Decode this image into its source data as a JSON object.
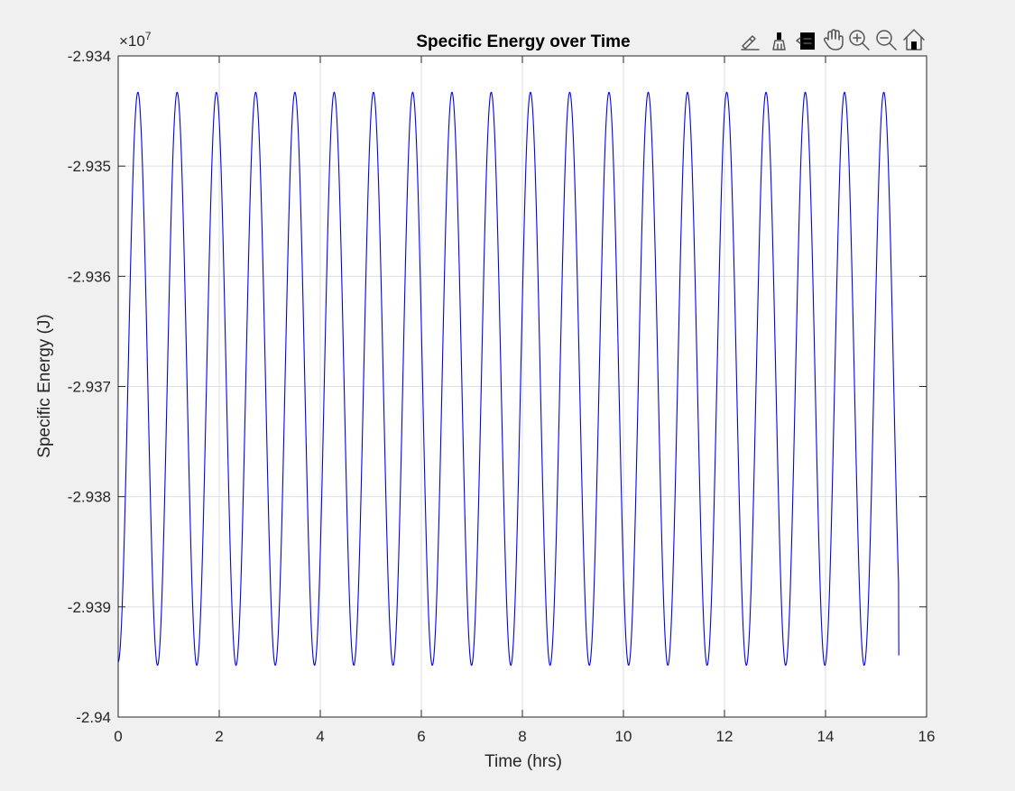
{
  "chart_data": {
    "type": "line",
    "title": "Specific Energy over Time",
    "xlabel": "Time (hrs)",
    "ylabel": "Specific Energy (J)",
    "y_exponent_label": "×10",
    "y_exponent_power": "7",
    "xlim": [
      0,
      16
    ],
    "ylim": [
      -2.94,
      -2.934
    ],
    "y_scale_factor": 10000000,
    "x_ticks": [
      0,
      2,
      4,
      6,
      8,
      10,
      12,
      14,
      16
    ],
    "x_tick_labels": [
      "0",
      "2",
      "4",
      "6",
      "8",
      "10",
      "12",
      "14",
      "16"
    ],
    "y_ticks": [
      -2.94,
      -2.939,
      -2.938,
      -2.937,
      -2.936,
      -2.935,
      -2.934
    ],
    "y_tick_labels": [
      "-2.94",
      "-2.939",
      "-2.938",
      "-2.937",
      "-2.936",
      "-2.935",
      "-2.934"
    ],
    "grid": true,
    "series": [
      {
        "color": "#0000ff",
        "oscillation": {
          "period_hrs": 0.777,
          "max": -2.93433,
          "min": -2.93953,
          "first_peak_hrs": 0.39,
          "start_hrs": 0,
          "end_hrs": 15.45,
          "start_value": -2.9395,
          "end_value": -2.93944
        }
      }
    ]
  },
  "toolbar": {
    "items": [
      {
        "name": "edit-icon"
      },
      {
        "name": "brush-icon"
      },
      {
        "name": "data-tips-icon"
      },
      {
        "name": "pan-hand-icon"
      },
      {
        "name": "zoom-in-icon"
      },
      {
        "name": "zoom-out-icon"
      },
      {
        "name": "home-icon"
      }
    ]
  }
}
